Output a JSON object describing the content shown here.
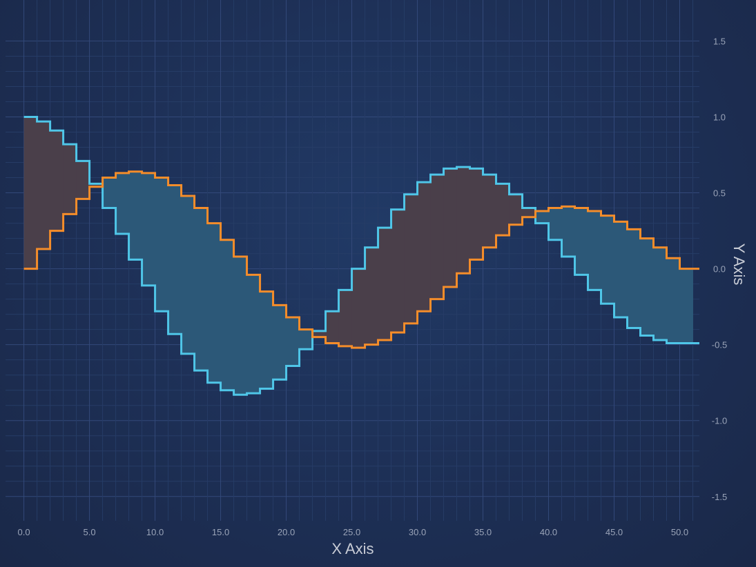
{
  "chart_data": {
    "type": "area",
    "subtype": "band-step",
    "xlabel": "X Axis",
    "ylabel": "Y Axis",
    "xlim": [
      -1.4,
      51.5
    ],
    "ylim": [
      -1.66,
      1.77
    ],
    "x_ticks": [
      "0.0",
      "5.0",
      "10.0",
      "15.0",
      "20.0",
      "25.0",
      "30.0",
      "35.0",
      "40.0",
      "45.0",
      "50.0"
    ],
    "y_ticks": [
      "1.5",
      "1.0",
      "0.5",
      "0.0",
      "-0.5",
      "-1.0",
      "-1.5"
    ],
    "y_axis_position": "right",
    "grid": true,
    "x": [
      0,
      1,
      2,
      3,
      4,
      5,
      6,
      7,
      8,
      9,
      10,
      11,
      12,
      13,
      14,
      15,
      16,
      17,
      18,
      19,
      20,
      21,
      22,
      23,
      24,
      25,
      26,
      27,
      28,
      29,
      30,
      31,
      32,
      33,
      34,
      35,
      36,
      37,
      38,
      39,
      40,
      41,
      42,
      43,
      44,
      45,
      46,
      47,
      48,
      49,
      50
    ],
    "series": [
      {
        "color": "#4fc6e8",
        "values": [
          1.0,
          0.97,
          0.91,
          0.82,
          0.71,
          0.56,
          0.4,
          0.23,
          0.06,
          -0.11,
          -0.28,
          -0.43,
          -0.56,
          -0.67,
          -0.75,
          -0.8,
          -0.83,
          -0.82,
          -0.79,
          -0.73,
          -0.64,
          -0.53,
          -0.41,
          -0.28,
          -0.14,
          0.0,
          0.14,
          0.27,
          0.39,
          0.49,
          0.57,
          0.62,
          0.66,
          0.67,
          0.66,
          0.62,
          0.56,
          0.49,
          0.4,
          0.3,
          0.19,
          0.08,
          -0.04,
          -0.14,
          -0.23,
          -0.32,
          -0.39,
          -0.44,
          -0.47,
          -0.49,
          -0.49
        ]
      },
      {
        "color": "#f58d2a",
        "values": [
          0.0,
          0.13,
          0.25,
          0.36,
          0.46,
          0.54,
          0.6,
          0.63,
          0.64,
          0.63,
          0.6,
          0.55,
          0.48,
          0.4,
          0.3,
          0.19,
          0.08,
          -0.04,
          -0.15,
          -0.24,
          -0.32,
          -0.4,
          -0.45,
          -0.49,
          -0.51,
          -0.52,
          -0.5,
          -0.47,
          -0.42,
          -0.36,
          -0.28,
          -0.2,
          -0.12,
          -0.03,
          0.06,
          0.14,
          0.22,
          0.29,
          0.34,
          0.38,
          0.4,
          0.41,
          0.4,
          0.38,
          0.35,
          0.31,
          0.26,
          0.2,
          0.14,
          0.07,
          0.0
        ]
      }
    ],
    "band_fill_colors": {
      "above": "#4a3f4a",
      "below": "#2c5878"
    }
  }
}
